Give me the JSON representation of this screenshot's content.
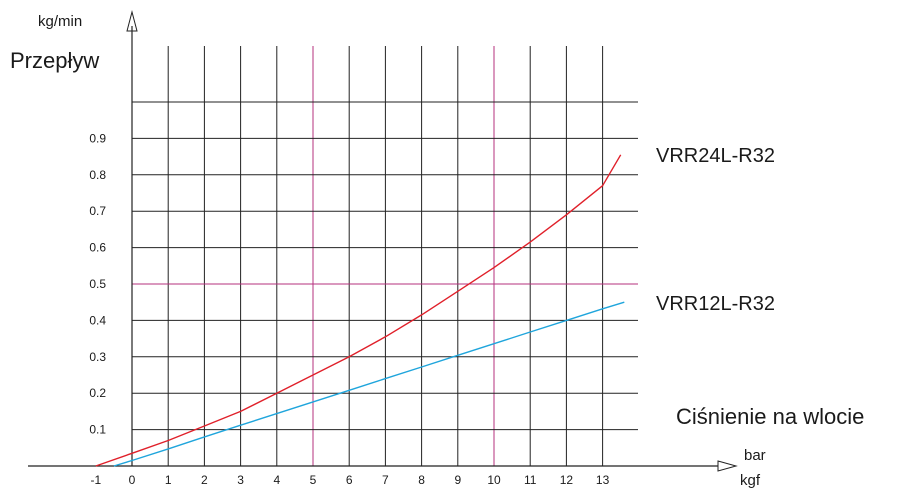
{
  "chart_data": {
    "type": "line",
    "ylabel": "Przepływ",
    "y_unit": "kg/min",
    "xlabel": "Ciśnienie na wlocie",
    "x_unit_top": "bar",
    "x_unit_bottom": "kgf",
    "x_ticks": [
      "-1",
      "0",
      "1",
      "2",
      "3",
      "4",
      "5",
      "6",
      "7",
      "8",
      "9",
      "10",
      "11",
      "12",
      "13"
    ],
    "y_ticks": [
      "0.1",
      "0.2",
      "0.3",
      "0.4",
      "0.5",
      "0.6",
      "0.7",
      "0.8",
      "0.9"
    ],
    "xlim": [
      -1,
      14
    ],
    "ylim": [
      0,
      1.0
    ],
    "grid": true,
    "highlight_x": [
      5,
      10
    ],
    "highlight_y": [
      0.5
    ],
    "series": [
      {
        "name": "VRR24L-R32",
        "color": "#e0202a",
        "x": [
          -1,
          0,
          1,
          2,
          3,
          4,
          5,
          6,
          7,
          8,
          9,
          10,
          11,
          12,
          13,
          13.5
        ],
        "y": [
          0.0,
          0.035,
          0.07,
          0.11,
          0.15,
          0.2,
          0.25,
          0.3,
          0.355,
          0.415,
          0.48,
          0.545,
          0.615,
          0.69,
          0.77,
          0.855
        ]
      },
      {
        "name": "VRR12L-R32",
        "color": "#1fa5dc",
        "x": [
          -0.5,
          0,
          1,
          2,
          3,
          4,
          5,
          6,
          7,
          8,
          9,
          10,
          11,
          12,
          13,
          13.6
        ],
        "y": [
          0.0,
          0.015,
          0.047,
          0.08,
          0.112,
          0.144,
          0.176,
          0.208,
          0.24,
          0.272,
          0.304,
          0.336,
          0.368,
          0.4,
          0.432,
          0.45
        ]
      }
    ]
  }
}
